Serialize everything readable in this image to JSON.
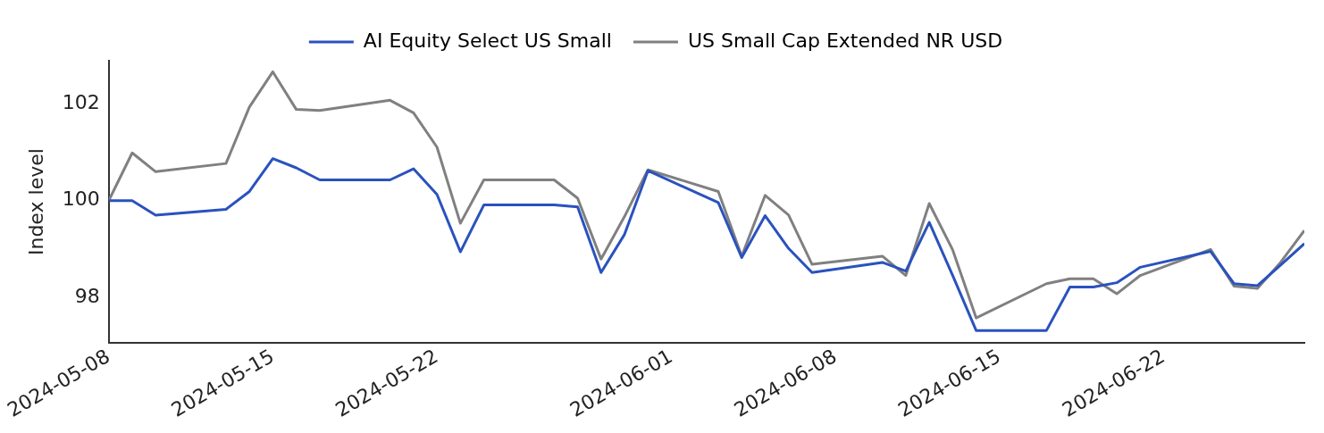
{
  "chart_data": {
    "type": "line",
    "ylabel": "Index level",
    "x": [
      "2024-05-08",
      "2024-05-09",
      "2024-05-10",
      "2024-05-13",
      "2024-05-14",
      "2024-05-15",
      "2024-05-16",
      "2024-05-17",
      "2024-05-20",
      "2024-05-21",
      "2024-05-22",
      "2024-05-23",
      "2024-05-24",
      "2024-05-27",
      "2024-05-28",
      "2024-05-29",
      "2024-05-30",
      "2024-05-31",
      "2024-06-03",
      "2024-06-04",
      "2024-06-05",
      "2024-06-06",
      "2024-06-07",
      "2024-06-10",
      "2024-06-11",
      "2024-06-12",
      "2024-06-13",
      "2024-06-14",
      "2024-06-17",
      "2024-06-18",
      "2024-06-19",
      "2024-06-20",
      "2024-06-21",
      "2024-06-24",
      "2024-06-25",
      "2024-06-26",
      "2024-06-27",
      "2024-06-28"
    ],
    "series": [
      {
        "name": "AI Equity Select US Small",
        "color": "#2a52be",
        "values": [
          100.0,
          100.0,
          99.7,
          99.82,
          100.19,
          100.87,
          100.68,
          100.43,
          100.43,
          100.66,
          100.13,
          98.94,
          99.91,
          99.91,
          99.87,
          98.51,
          99.3,
          100.62,
          99.96,
          98.82,
          99.69,
          99.01,
          98.51,
          98.72,
          98.54,
          99.55,
          98.45,
          97.31,
          97.31,
          98.21,
          98.21,
          98.3,
          98.62,
          98.95,
          98.28,
          98.24,
          98.67,
          99.11
        ]
      },
      {
        "name": "US Small Cap Extended NR USD",
        "color": "#808080",
        "values": [
          100.0,
          100.99,
          100.6,
          100.77,
          101.94,
          102.67,
          101.89,
          101.87,
          102.08,
          101.82,
          101.11,
          99.53,
          100.43,
          100.43,
          100.05,
          98.79,
          99.67,
          100.64,
          100.19,
          98.85,
          100.11,
          99.7,
          98.68,
          98.85,
          98.45,
          99.94,
          98.98,
          97.57,
          98.28,
          98.38,
          98.38,
          98.07,
          98.45,
          98.99,
          98.23,
          98.18,
          98.73,
          99.38
        ]
      }
    ],
    "xlim": [
      "2024-05-08",
      "2024-06-28"
    ],
    "xticks": [
      "2024-05-08",
      "2024-05-15",
      "2024-05-22",
      "2024-06-01",
      "2024-06-08",
      "2024-06-15",
      "2024-06-22"
    ],
    "ylim": [
      97.05,
      102.9
    ],
    "yticks": [
      98,
      100,
      102
    ],
    "grid": false,
    "legend": "top",
    "marker": "none",
    "line_style": "solid"
  }
}
